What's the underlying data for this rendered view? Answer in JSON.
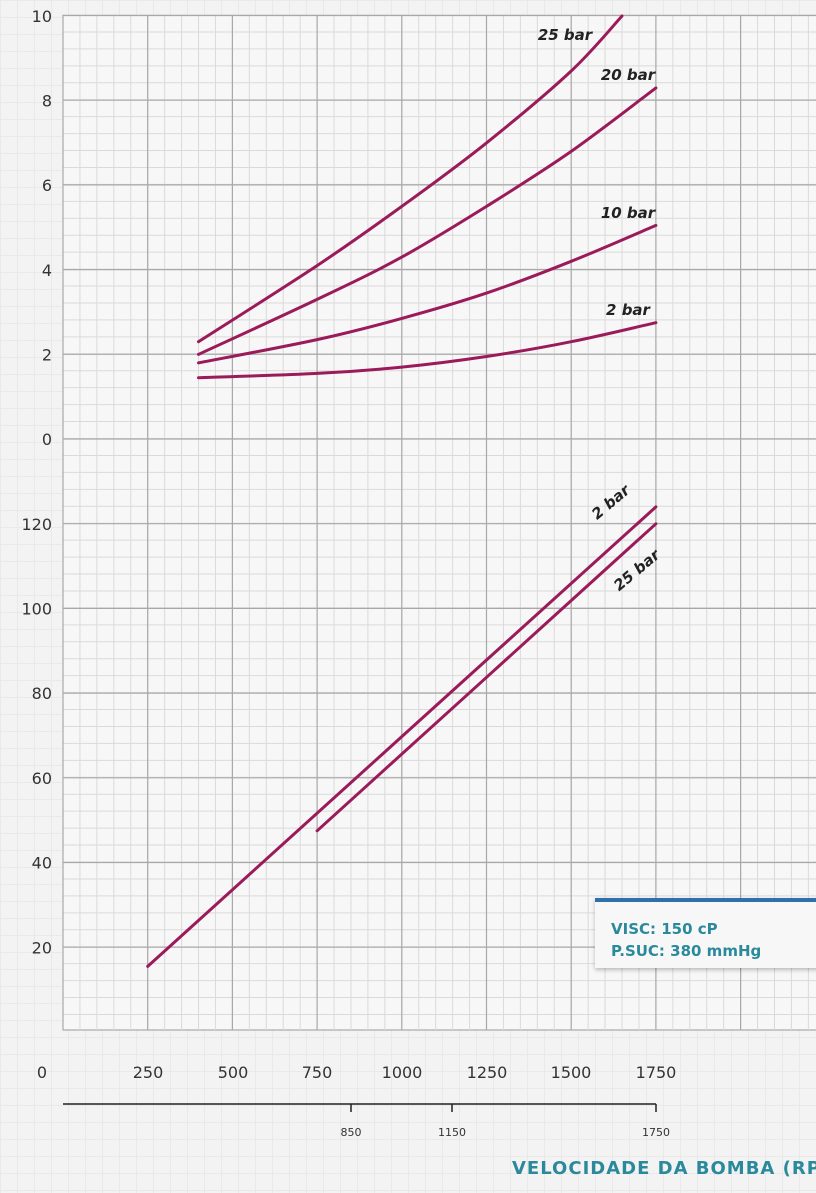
{
  "chart_data": {
    "type": "line",
    "info_box": {
      "line1": "VISC: 150 cP",
      "line2": "P.SUC: 380 mmHg"
    },
    "x_axis_title": "VELOCIDADE DA BOMBA (RPM",
    "x_ticks": [
      "0",
      "250",
      "500",
      "750",
      "1000",
      "1250",
      "1500",
      "1750"
    ],
    "x_ticks_secondary": [
      "850",
      "1150",
      "1750"
    ],
    "y_ticks_upper": [
      "10",
      "8",
      "6",
      "4",
      "2",
      "0"
    ],
    "y_ticks_lower": [
      "120",
      "100",
      "80",
      "60",
      "40",
      "20"
    ],
    "ylim_upper": [
      0,
      10
    ],
    "ylim_lower": [
      0,
      140
    ],
    "xlim": [
      0,
      2250
    ],
    "grid": true,
    "upper_panel": {
      "series": [
        {
          "name": "25 bar",
          "x": [
            400,
            750,
            1000,
            1250,
            1500,
            1650
          ],
          "y": [
            2.3,
            4.1,
            5.5,
            7.0,
            8.7,
            10.0
          ]
        },
        {
          "name": "20 bar",
          "x": [
            400,
            750,
            1000,
            1250,
            1500,
            1750
          ],
          "y": [
            2.0,
            3.3,
            4.3,
            5.5,
            6.8,
            8.3
          ]
        },
        {
          "name": "10 bar",
          "x": [
            400,
            750,
            1000,
            1250,
            1500,
            1750
          ],
          "y": [
            1.8,
            2.35,
            2.85,
            3.45,
            4.2,
            5.05
          ]
        },
        {
          "name": "2 bar",
          "x": [
            400,
            750,
            1000,
            1250,
            1500,
            1750
          ],
          "y": [
            1.45,
            1.55,
            1.7,
            1.95,
            2.3,
            2.75
          ]
        }
      ]
    },
    "lower_panel": {
      "series": [
        {
          "name": "2 bar",
          "x": [
            250,
            1750
          ],
          "y": [
            15.5,
            124
          ]
        },
        {
          "name": "25 bar",
          "x": [
            750,
            1750
          ],
          "y": [
            47.5,
            120
          ]
        }
      ]
    },
    "colors": {
      "series": "#9b1b5a",
      "grid_major": "#a8a8a8",
      "grid_minor": "#dadada",
      "info_border": "#2f6fab",
      "accent_text": "#2a8a9c"
    }
  }
}
